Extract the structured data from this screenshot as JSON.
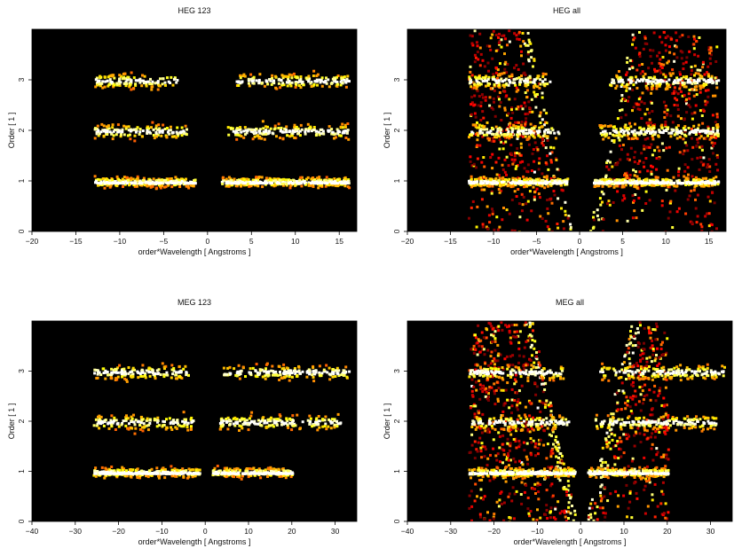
{
  "chart_data": [
    {
      "type": "heatmap",
      "title": "HEG 123",
      "xlabel": "order*Wavelength [ Angstroms ]",
      "ylabel": "Order [ 1 ]",
      "xlim": [
        -20,
        17
      ],
      "ylim": [
        0,
        4
      ],
      "xticks": [
        -20,
        -15,
        -10,
        -5,
        0,
        5,
        10,
        15
      ],
      "yticks": [
        0,
        1,
        2,
        3
      ],
      "grid": false,
      "colormap": "black-red-orange-yellow-white (heat)",
      "bands": [
        {
          "order": 1,
          "x_ranges": [
            [
              -13,
              -1.5
            ],
            [
              1.5,
              16
            ]
          ]
        },
        {
          "order": 2,
          "x_ranges": [
            [
              -13,
              -2.5
            ],
            [
              2.2,
              16
            ]
          ]
        },
        {
          "order": 3,
          "x_ranges": [
            [
              -13,
              -3.5
            ],
            [
              3.2,
              16
            ]
          ]
        }
      ]
    },
    {
      "type": "heatmap",
      "title": "HEG all",
      "xlabel": "order*Wavelength [ Angstroms ]",
      "ylabel": "Order [ 1 ]",
      "xlim": [
        -20,
        17
      ],
      "ylim": [
        0,
        4
      ],
      "xticks": [
        -20,
        -15,
        -10,
        -5,
        0,
        5,
        10,
        15
      ],
      "yticks": [
        0,
        1,
        2,
        3
      ],
      "grid": false,
      "colormap": "black-red-orange-yellow-white (heat)",
      "bands": [
        {
          "order": 1,
          "x_ranges": [
            [
              -13,
              -1.5
            ],
            [
              1.5,
              16
            ]
          ]
        },
        {
          "order": 2,
          "x_ranges": [
            [
              -13,
              -2.5
            ],
            [
              2.2,
              16
            ]
          ]
        },
        {
          "order": 3,
          "x_ranges": [
            [
              -13,
              -3.5
            ],
            [
              3.2,
              16
            ]
          ]
        }
      ]
    },
    {
      "type": "heatmap",
      "title": "MEG 123",
      "xlabel": "order*Wavelength [ Angstroms ]",
      "ylabel": "Order [ 1 ]",
      "xlim": [
        -40,
        35
      ],
      "ylim": [
        0,
        4
      ],
      "xticks": [
        -40,
        -30,
        -20,
        -10,
        0,
        10,
        20,
        30
      ],
      "yticks": [
        0,
        1,
        2,
        3
      ],
      "grid": false,
      "colormap": "black-red-orange-yellow-white (heat)",
      "bands": [
        {
          "order": 1,
          "x_ranges": [
            [
              -26,
              -1.5
            ],
            [
              1.5,
              20
            ]
          ]
        },
        {
          "order": 2,
          "x_ranges": [
            [
              -26,
              -3
            ],
            [
              3,
              31
            ]
          ]
        },
        {
          "order": 3,
          "x_ranges": [
            [
              -26,
              -4
            ],
            [
              4,
              33
            ]
          ]
        }
      ]
    },
    {
      "type": "heatmap",
      "title": "MEG all",
      "xlabel": "order*Wavelength [ Angstroms ]",
      "ylabel": "Order [ 1 ]",
      "xlim": [
        -40,
        35
      ],
      "ylim": [
        0,
        4
      ],
      "xticks": [
        -40,
        -30,
        -20,
        -10,
        0,
        10,
        20,
        30
      ],
      "yticks": [
        0,
        1,
        2,
        3
      ],
      "grid": false,
      "colormap": "black-red-orange-yellow-white (heat)",
      "bands": [
        {
          "order": 1,
          "x_ranges": [
            [
              -26,
              -1.5
            ],
            [
              1.5,
              20
            ]
          ]
        },
        {
          "order": 2,
          "x_ranges": [
            [
              -26,
              -3
            ],
            [
              3,
              31
            ]
          ]
        },
        {
          "order": 3,
          "x_ranges": [
            [
              -26,
              -4
            ],
            [
              4,
              33
            ]
          ]
        }
      ]
    }
  ]
}
